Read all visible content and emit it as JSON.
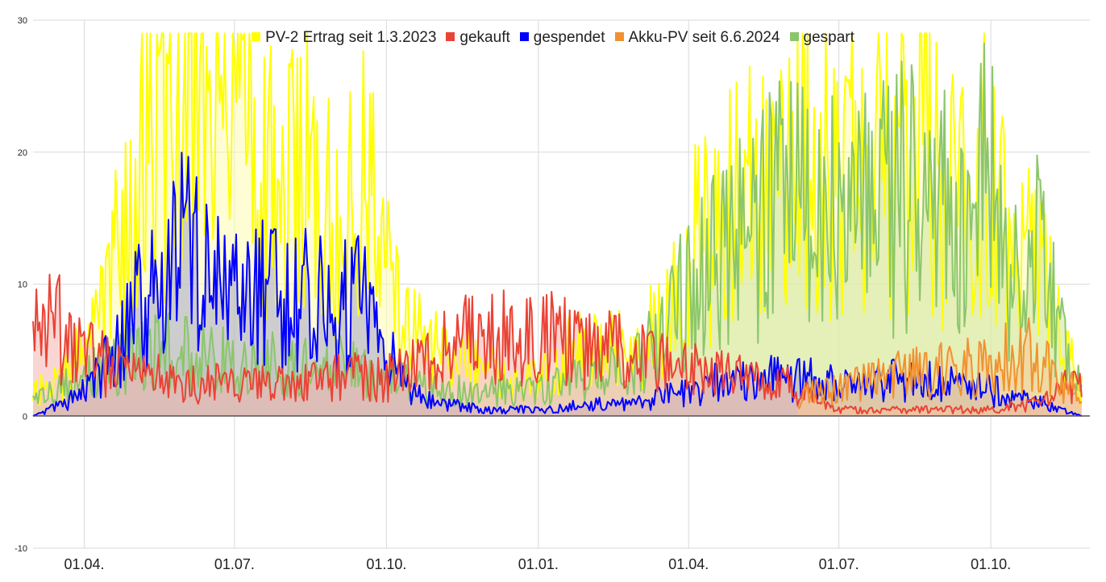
{
  "chart_data": {
    "type": "area",
    "xlabel": "",
    "ylabel": "",
    "ylim": [
      -10,
      30
    ],
    "yticks": [
      -10,
      0,
      10,
      20,
      30
    ],
    "xlim": [
      "2023-03-01",
      "2024-11-30"
    ],
    "xticks": [
      {
        "date": "2023-04-01",
        "label": "01.04."
      },
      {
        "date": "2023-07-01",
        "label": "01.07."
      },
      {
        "date": "2023-10-01",
        "label": "01.10."
      },
      {
        "date": "2024-01-01",
        "label": "01.01."
      },
      {
        "date": "2024-04-01",
        "label": "01.04."
      },
      {
        "date": "2024-07-01",
        "label": "01.07."
      },
      {
        "date": "2024-10-01",
        "label": "01.10."
      }
    ],
    "grid": true,
    "legend_position": "top",
    "series": [
      {
        "name": "PV-2 Ertrag seit 1.3.2023",
        "color": "#ffff00",
        "fill": "#fdfbb0",
        "points": [
          [
            "2023-03-01",
            2
          ],
          [
            "2023-03-20",
            3
          ],
          [
            "2023-04-01",
            5
          ],
          [
            "2023-04-10",
            9
          ],
          [
            "2023-04-20",
            12
          ],
          [
            "2023-05-01",
            15
          ],
          [
            "2023-05-10",
            24
          ],
          [
            "2023-05-20",
            22
          ],
          [
            "2023-06-01",
            25
          ],
          [
            "2023-06-10",
            27
          ],
          [
            "2023-06-20",
            24
          ],
          [
            "2023-07-01",
            22
          ],
          [
            "2023-07-10",
            25
          ],
          [
            "2023-07-20",
            19
          ],
          [
            "2023-08-01",
            17
          ],
          [
            "2023-08-10",
            21
          ],
          [
            "2023-08-20",
            17
          ],
          [
            "2023-09-01",
            15
          ],
          [
            "2023-09-10",
            19
          ],
          [
            "2023-09-20",
            17
          ],
          [
            "2023-10-01",
            13
          ],
          [
            "2023-10-10",
            9
          ],
          [
            "2023-10-20",
            6
          ],
          [
            "2023-11-01",
            5
          ],
          [
            "2023-11-20",
            4
          ],
          [
            "2023-12-10",
            3
          ],
          [
            "2024-01-01",
            3
          ],
          [
            "2024-01-20",
            5
          ],
          [
            "2024-02-10",
            5
          ],
          [
            "2024-03-01",
            5
          ],
          [
            "2024-03-20",
            9
          ],
          [
            "2024-04-01",
            12
          ],
          [
            "2024-04-15",
            15
          ],
          [
            "2024-05-01",
            16
          ],
          [
            "2024-05-15",
            20
          ],
          [
            "2024-06-01",
            21
          ],
          [
            "2024-06-15",
            19
          ],
          [
            "2024-07-01",
            19
          ],
          [
            "2024-07-15",
            20
          ],
          [
            "2024-08-01",
            19
          ],
          [
            "2024-08-15",
            22
          ],
          [
            "2024-09-01",
            18
          ],
          [
            "2024-09-15",
            16
          ],
          [
            "2024-10-01",
            22
          ],
          [
            "2024-10-10",
            13
          ],
          [
            "2024-10-20",
            12
          ],
          [
            "2024-11-01",
            13
          ],
          [
            "2024-11-10",
            7
          ],
          [
            "2024-11-25",
            2
          ]
        ]
      },
      {
        "name": "gekauft",
        "color": "#ea4335",
        "fill": "#f4b5b0",
        "points": [
          [
            "2023-03-01",
            6
          ],
          [
            "2023-03-15",
            7
          ],
          [
            "2023-04-01",
            5
          ],
          [
            "2023-04-15",
            4
          ],
          [
            "2023-05-01",
            3
          ],
          [
            "2023-05-15",
            3
          ],
          [
            "2023-06-01",
            2.5
          ],
          [
            "2023-07-01",
            2.5
          ],
          [
            "2023-08-01",
            2.5
          ],
          [
            "2023-09-01",
            3
          ],
          [
            "2023-10-01",
            3
          ],
          [
            "2023-10-20",
            4
          ],
          [
            "2023-11-01",
            5
          ],
          [
            "2023-11-20",
            6
          ],
          [
            "2023-12-10",
            6
          ],
          [
            "2024-01-01",
            6
          ],
          [
            "2024-01-20",
            6
          ],
          [
            "2024-02-10",
            5
          ],
          [
            "2024-03-01",
            5
          ],
          [
            "2024-03-20",
            4
          ],
          [
            "2024-04-01",
            3.5
          ],
          [
            "2024-05-01",
            3
          ],
          [
            "2024-06-01",
            2.5
          ],
          [
            "2024-06-20",
            1
          ],
          [
            "2024-07-01",
            0.5
          ],
          [
            "2024-08-01",
            0.5
          ],
          [
            "2024-09-01",
            0.5
          ],
          [
            "2024-10-01",
            0.5
          ],
          [
            "2024-11-01",
            1
          ],
          [
            "2024-11-25",
            3
          ]
        ]
      },
      {
        "name": "gespendet",
        "color": "#0000ff",
        "fill": "#a6a6c8",
        "points": [
          [
            "2023-03-01",
            0
          ],
          [
            "2023-03-20",
            1
          ],
          [
            "2023-04-01",
            2
          ],
          [
            "2023-04-15",
            4
          ],
          [
            "2023-05-01",
            8
          ],
          [
            "2023-05-15",
            10
          ],
          [
            "2023-06-01",
            13
          ],
          [
            "2023-06-15",
            11
          ],
          [
            "2023-07-01",
            10
          ],
          [
            "2023-07-15",
            10
          ],
          [
            "2023-08-01",
            9
          ],
          [
            "2023-08-15",
            9
          ],
          [
            "2023-09-01",
            8
          ],
          [
            "2023-09-15",
            9
          ],
          [
            "2023-10-01",
            5
          ],
          [
            "2023-10-15",
            2
          ],
          [
            "2023-11-01",
            1
          ],
          [
            "2023-12-01",
            0.5
          ],
          [
            "2024-01-01",
            0.5
          ],
          [
            "2024-02-01",
            1
          ],
          [
            "2024-03-01",
            1
          ],
          [
            "2024-04-01",
            2
          ],
          [
            "2024-05-01",
            3
          ],
          [
            "2024-06-01",
            3
          ],
          [
            "2024-07-01",
            2.5
          ],
          [
            "2024-08-01",
            3
          ],
          [
            "2024-09-01",
            2.5
          ],
          [
            "2024-10-01",
            2
          ],
          [
            "2024-11-01",
            1
          ],
          [
            "2024-11-25",
            0
          ]
        ]
      },
      {
        "name": "Akku-PV seit 6.6.2024",
        "color": "#f29130",
        "fill": "#f8c891",
        "points": [
          [
            "2024-06-06",
            1.5
          ],
          [
            "2024-07-01",
            2
          ],
          [
            "2024-08-01",
            3
          ],
          [
            "2024-09-01",
            3.5
          ],
          [
            "2024-10-01",
            4
          ],
          [
            "2024-10-20",
            5
          ],
          [
            "2024-11-01",
            4
          ],
          [
            "2024-11-25",
            1.5
          ]
        ]
      },
      {
        "name": "gespart",
        "color": "#8bc66b",
        "fill": "#cfe4a0",
        "points": [
          [
            "2023-03-01",
            1
          ],
          [
            "2023-04-01",
            3
          ],
          [
            "2023-05-01",
            5
          ],
          [
            "2023-06-01",
            5
          ],
          [
            "2023-07-01",
            4
          ],
          [
            "2023-08-01",
            4
          ],
          [
            "2023-09-01",
            4
          ],
          [
            "2023-10-01",
            3
          ],
          [
            "2023-11-01",
            2
          ],
          [
            "2023-12-01",
            2
          ],
          [
            "2024-01-01",
            2
          ],
          [
            "2024-02-01",
            3
          ],
          [
            "2024-03-01",
            4
          ],
          [
            "2024-03-20",
            7
          ],
          [
            "2024-04-01",
            10
          ],
          [
            "2024-04-15",
            12
          ],
          [
            "2024-05-01",
            13
          ],
          [
            "2024-05-15",
            15
          ],
          [
            "2024-06-01",
            17
          ],
          [
            "2024-06-15",
            15
          ],
          [
            "2024-07-01",
            16
          ],
          [
            "2024-07-15",
            17
          ],
          [
            "2024-08-01",
            16
          ],
          [
            "2024-08-15",
            18
          ],
          [
            "2024-09-01",
            16
          ],
          [
            "2024-09-15",
            14
          ],
          [
            "2024-10-01",
            19
          ],
          [
            "2024-10-10",
            11
          ],
          [
            "2024-10-20",
            10
          ],
          [
            "2024-11-01",
            14
          ],
          [
            "2024-11-10",
            7
          ],
          [
            "2024-11-25",
            2
          ]
        ]
      }
    ]
  }
}
